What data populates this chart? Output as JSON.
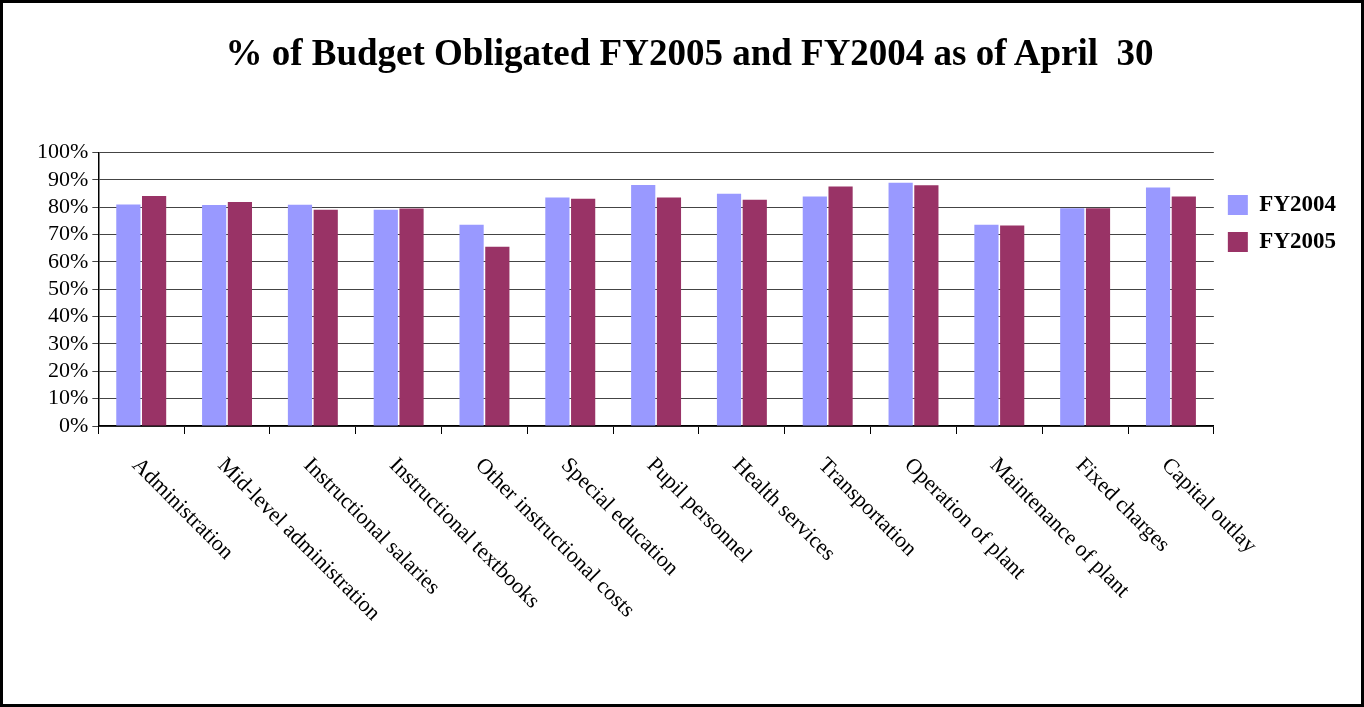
{
  "chart_data": {
    "type": "bar",
    "title": "% of Budget Obligated FY2005 and FY2004 as of April  30",
    "categories": [
      "Administration",
      "Mid-level administration",
      "Instructional salaries",
      "Instructional textbooks",
      "Other instructional costs",
      "Special education",
      "Pupil personnel",
      "Health services",
      "Transportation",
      "Operation of plant",
      "Maintenance of plant",
      "Fixed charges",
      "Capital outlay"
    ],
    "series": [
      {
        "name": "FY2004",
        "color": "#9999ff",
        "values": [
          81,
          80.8,
          80.9,
          79,
          73.6,
          83.5,
          88.1,
          84.9,
          83.9,
          88.9,
          73.6,
          79.6,
          87.2
        ]
      },
      {
        "name": "FY2005",
        "color": "#993366",
        "values": [
          84.1,
          81.9,
          79,
          79.5,
          65.5,
          83.1,
          83.5,
          82.7,
          87.5,
          88,
          73.3,
          79.6,
          83.9
        ]
      }
    ],
    "ylim": [
      0,
      100
    ],
    "yticks": [
      {
        "value": 0,
        "label": "0%"
      },
      {
        "value": 10,
        "label": "10%"
      },
      {
        "value": 20,
        "label": "20%"
      },
      {
        "value": 30,
        "label": "30%"
      },
      {
        "value": 40,
        "label": "40%"
      },
      {
        "value": 50,
        "label": "50%"
      },
      {
        "value": 60,
        "label": "60%"
      },
      {
        "value": 70,
        "label": "70%"
      },
      {
        "value": 80,
        "label": "80%"
      },
      {
        "value": 90,
        "label": "90%"
      },
      {
        "value": 100,
        "label": "100%"
      }
    ],
    "grid": "y",
    "legend": "right"
  }
}
